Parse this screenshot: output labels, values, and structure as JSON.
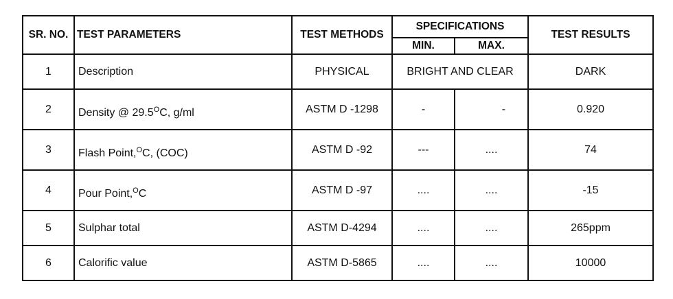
{
  "headers": {
    "sr_no": "SR. NO.",
    "test_parameters": "TEST PARAMETERS",
    "test_methods": "TEST METHODS",
    "specifications": "SPECIFICATIONS",
    "min": "MIN.",
    "max": "MAX.",
    "test_results": "TEST RESULTS"
  },
  "rows": [
    {
      "sr": "1",
      "parameter": "Description",
      "method": "PHYSICAL",
      "spec": "BRIGHT AND CLEAR",
      "result": "DARK"
    },
    {
      "sr": "2",
      "parameter_pre": "Density @ 29.5",
      "degree": "O",
      "parameter_post": "C, g/ml",
      "method": "ASTM D -1298",
      "min": "-",
      "max": "-",
      "result": "0.920"
    },
    {
      "sr": "3",
      "parameter_pre": "Flash Point,",
      "degree": "O",
      "parameter_post": "C, (COC)",
      "method": "ASTM D -92",
      "min": "---",
      "max": "....",
      "result": "74"
    },
    {
      "sr": "4",
      "parameter_pre": "Pour Point,",
      "degree": "O",
      "parameter_post": "C",
      "method": "ASTM D -97",
      "min": "....",
      "max": "....",
      "result": "-15"
    },
    {
      "sr": "5",
      "parameter": "Sulphar total",
      "method": "ASTM D-4294",
      "min": "....",
      "max": "....",
      "result": "265ppm"
    },
    {
      "sr": "6",
      "parameter": "Calorific value",
      "method": "ASTM D-5865",
      "min": "....",
      "max": "....",
      "result": "10000"
    }
  ]
}
